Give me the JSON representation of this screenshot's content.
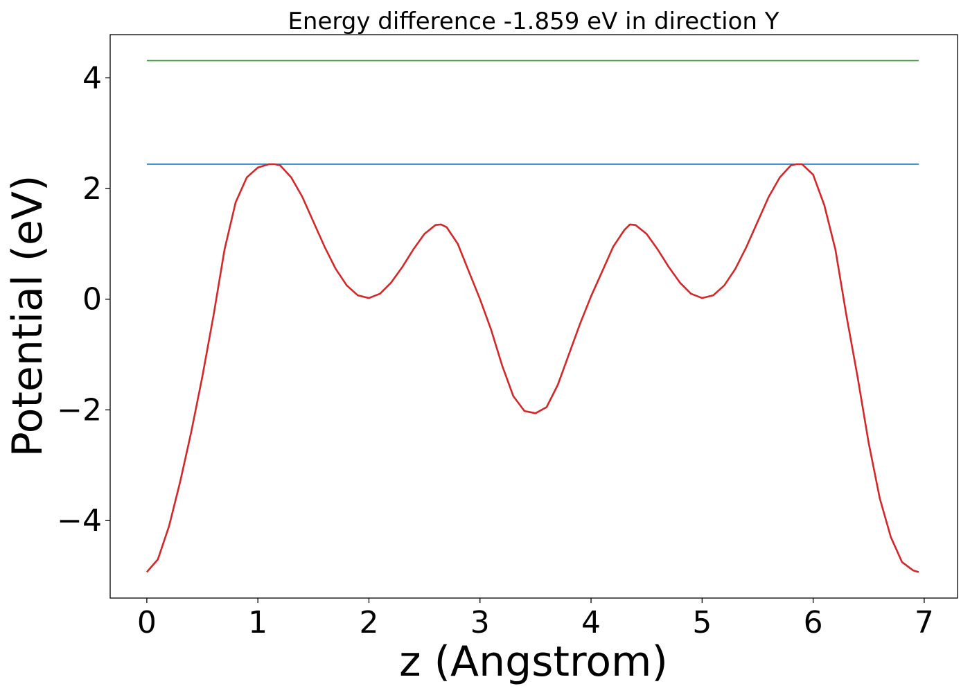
{
  "chart_data": {
    "type": "line",
    "title": "Energy difference -1.859 eV in direction Y",
    "xlabel": "z (Angstrom)",
    "ylabel": "Potential (eV)",
    "xlim": [
      -0.33,
      7.3
    ],
    "ylim": [
      -5.4,
      4.78
    ],
    "xticks": [
      0,
      1,
      2,
      3,
      4,
      5,
      6,
      7
    ],
    "xtick_labels": [
      "0",
      "1",
      "2",
      "3",
      "4",
      "5",
      "6",
      "7"
    ],
    "yticks": [
      4,
      2,
      0,
      -2,
      -4
    ],
    "ytick_labels": [
      "4",
      "2",
      "0",
      "−2",
      "−4"
    ],
    "grid": false,
    "series": [
      {
        "color": "#d62728",
        "kind": "line",
        "x": [
          0,
          0.1,
          0.2,
          0.3,
          0.4,
          0.5,
          0.6,
          0.7,
          0.8,
          0.9,
          1.0,
          1.1,
          1.15,
          1.2,
          1.3,
          1.4,
          1.5,
          1.6,
          1.7,
          1.8,
          1.9,
          2.0,
          2.1,
          2.2,
          2.3,
          2.4,
          2.5,
          2.6,
          2.65,
          2.7,
          2.8,
          2.9,
          3.0,
          3.1,
          3.2,
          3.3,
          3.4,
          3.5,
          3.6,
          3.7,
          3.8,
          3.9,
          4.0,
          4.1,
          4.2,
          4.3,
          4.35,
          4.4,
          4.5,
          4.6,
          4.7,
          4.8,
          4.9,
          5.0,
          5.1,
          5.2,
          5.3,
          5.4,
          5.5,
          5.6,
          5.7,
          5.8,
          5.85,
          5.9,
          6.0,
          6.1,
          6.2,
          6.3,
          6.4,
          6.5,
          6.6,
          6.7,
          6.8,
          6.9,
          6.95
        ],
        "y": [
          -4.93,
          -4.7,
          -4.1,
          -3.3,
          -2.4,
          -1.4,
          -0.3,
          0.9,
          1.75,
          2.2,
          2.38,
          2.44,
          2.44,
          2.42,
          2.2,
          1.85,
          1.4,
          0.95,
          0.55,
          0.25,
          0.07,
          0.02,
          0.1,
          0.3,
          0.58,
          0.9,
          1.18,
          1.34,
          1.35,
          1.3,
          1.0,
          0.5,
          0.0,
          -0.55,
          -1.2,
          -1.75,
          -2.02,
          -2.06,
          -1.95,
          -1.55,
          -1.0,
          -0.45,
          0.05,
          0.5,
          0.95,
          1.25,
          1.35,
          1.34,
          1.18,
          0.9,
          0.58,
          0.3,
          0.1,
          0.02,
          0.07,
          0.25,
          0.55,
          0.95,
          1.4,
          1.85,
          2.2,
          2.42,
          2.44,
          2.44,
          2.25,
          1.7,
          0.9,
          -0.3,
          -1.4,
          -2.6,
          -3.6,
          -4.3,
          -4.75,
          -4.9,
          -4.93
        ]
      },
      {
        "color": "#1f77b4",
        "kind": "hline",
        "x": [
          0,
          6.95
        ],
        "y": [
          2.44,
          2.44
        ]
      },
      {
        "color": "#2ca02c",
        "kind": "hline",
        "x": [
          0,
          6.95
        ],
        "y": [
          4.31,
          4.31
        ]
      }
    ]
  }
}
